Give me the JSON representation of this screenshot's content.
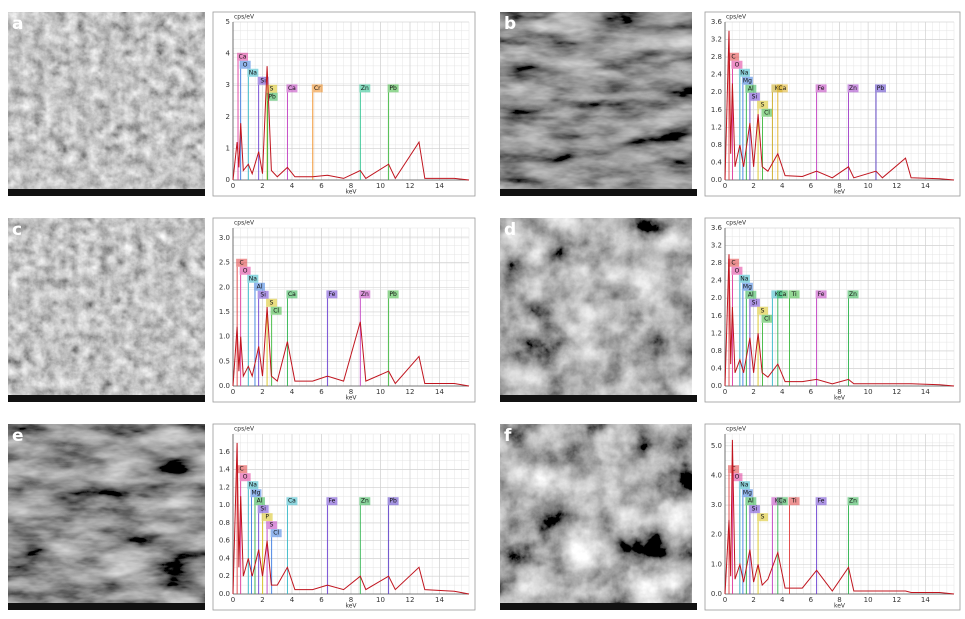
{
  "chart_data": [
    {
      "type": "line",
      "panel": "a",
      "ylabel": "cps/eV",
      "xlabel": "keV",
      "color": "#c0141e",
      "xlim": [
        0,
        16
      ],
      "xticks": [
        0,
        2,
        4,
        6,
        8,
        10,
        12,
        14
      ],
      "ylim": [
        0,
        5
      ],
      "yticks": [
        0,
        1,
        2,
        3,
        4,
        5
      ],
      "grid": true,
      "x": [
        0,
        0.28,
        0.4,
        0.52,
        0.7,
        1.04,
        1.3,
        1.74,
        2.0,
        2.31,
        2.6,
        3.0,
        3.69,
        4.2,
        5.4,
        6.4,
        7.5,
        8.63,
        9.0,
        10.55,
        11.0,
        12.61,
        13.0,
        15.0,
        16
      ],
      "values": [
        0,
        1.2,
        0.4,
        1.8,
        0.3,
        0.5,
        0.2,
        0.9,
        0.2,
        3.6,
        0.3,
        0.1,
        0.4,
        0.1,
        0.1,
        0.15,
        0.05,
        0.3,
        0.05,
        0.5,
        0.05,
        1.2,
        0.05,
        0.05,
        0
      ],
      "markers": [
        {
          "label": "Ca",
          "x": 0.34,
          "color": "#e0389a"
        },
        {
          "label": "O",
          "x": 0.52,
          "color": "#3a7be0"
        },
        {
          "label": "Na",
          "x": 1.04,
          "color": "#35b8c8"
        },
        {
          "label": "Si",
          "x": 1.74,
          "color": "#6b3fd1"
        },
        {
          "label": "S",
          "x": 2.31,
          "color": "#d8c21a"
        },
        {
          "label": "Pb",
          "x": 2.35,
          "color": "#2bb24c"
        },
        {
          "label": "Ca",
          "x": 3.69,
          "color": "#c03cc0"
        },
        {
          "label": "Cr",
          "x": 5.41,
          "color": "#f08a1c"
        },
        {
          "label": "Zn",
          "x": 8.63,
          "color": "#22c08a"
        },
        {
          "label": "Pb",
          "x": 10.55,
          "color": "#3cb83c"
        }
      ]
    },
    {
      "type": "line",
      "panel": "b",
      "ylabel": "cps/eV",
      "xlabel": "keV",
      "color": "#c0141e",
      "xlim": [
        0,
        16
      ],
      "xticks": [
        0,
        2,
        4,
        6,
        8,
        10,
        12,
        14
      ],
      "ylim": [
        0,
        3.6
      ],
      "yticks": [
        {
          "value": 0,
          "label": "0.0"
        },
        0.4,
        0.8,
        1.2,
        1.6,
        {
          "value": 2,
          "label": "2.0"
        },
        2.4,
        2.8,
        3.2,
        3.6
      ],
      "grid": true,
      "x": [
        0,
        0.28,
        0.4,
        0.52,
        0.7,
        1.04,
        1.3,
        1.74,
        2.0,
        2.31,
        2.6,
        3.0,
        3.69,
        4.2,
        5.4,
        6.4,
        7.5,
        8.63,
        9.0,
        10.55,
        11.0,
        12.61,
        13.0,
        15.0,
        16
      ],
      "values": [
        0,
        3.4,
        0.6,
        2.2,
        0.3,
        0.8,
        0.3,
        1.3,
        0.3,
        1.5,
        0.3,
        0.2,
        0.6,
        0.1,
        0.08,
        0.2,
        0.05,
        0.3,
        0.05,
        0.2,
        0.05,
        0.5,
        0.05,
        0.03,
        0
      ],
      "markers": [
        {
          "label": "C",
          "x": 0.28,
          "color": "#e03c3c"
        },
        {
          "label": "O",
          "x": 0.52,
          "color": "#e0389a"
        },
        {
          "label": "Na",
          "x": 1.04,
          "color": "#35b8c8"
        },
        {
          "label": "Mg",
          "x": 1.25,
          "color": "#3a7be0"
        },
        {
          "label": "Al",
          "x": 1.49,
          "color": "#2bb24c"
        },
        {
          "label": "Si",
          "x": 1.74,
          "color": "#6b3fd1"
        },
        {
          "label": "S",
          "x": 2.31,
          "color": "#d8c21a"
        },
        {
          "label": "Cl",
          "x": 2.62,
          "color": "#3cb83c"
        },
        {
          "label": "K",
          "x": 3.31,
          "color": "#c8a81a"
        },
        {
          "label": "Ca",
          "x": 3.69,
          "color": "#e0b020"
        },
        {
          "label": "Fe",
          "x": 6.4,
          "color": "#c03cc0"
        },
        {
          "label": "Zn",
          "x": 8.63,
          "color": "#a03cc8"
        },
        {
          "label": "Pb",
          "x": 10.55,
          "color": "#5a3cc8"
        }
      ]
    },
    {
      "type": "line",
      "panel": "c",
      "ylabel": "cps/eV",
      "xlabel": "keV",
      "color": "#c0141e",
      "xlim": [
        0,
        16
      ],
      "xticks": [
        0,
        2,
        4,
        6,
        8,
        10,
        12,
        14
      ],
      "ylim": [
        0,
        3.2
      ],
      "yticks": [
        {
          "value": 0,
          "label": "0.0"
        },
        0.5,
        {
          "value": 1,
          "label": "1.0"
        },
        1.5,
        {
          "value": 2,
          "label": "2.0"
        },
        2.5,
        {
          "value": 3,
          "label": "3.0"
        }
      ],
      "grid": true,
      "x": [
        0,
        0.28,
        0.4,
        0.52,
        0.7,
        1.04,
        1.3,
        1.74,
        2.0,
        2.31,
        2.6,
        3.0,
        3.69,
        4.2,
        5.4,
        6.4,
        7.5,
        8.63,
        9.0,
        10.55,
        11.0,
        12.61,
        13.0,
        15.0,
        16
      ],
      "values": [
        0,
        1.2,
        0.3,
        1.0,
        0.2,
        0.4,
        0.2,
        0.8,
        0.2,
        1.6,
        0.2,
        0.1,
        0.9,
        0.1,
        0.1,
        0.2,
        0.1,
        1.3,
        0.1,
        0.3,
        0.05,
        0.6,
        0.05,
        0.05,
        0
      ],
      "markers": [
        {
          "label": "C",
          "x": 0.28,
          "color": "#e03c3c"
        },
        {
          "label": "O",
          "x": 0.52,
          "color": "#e0389a"
        },
        {
          "label": "Na",
          "x": 1.04,
          "color": "#35b8c8"
        },
        {
          "label": "Al",
          "x": 1.49,
          "color": "#3a7be0"
        },
        {
          "label": "Si",
          "x": 1.74,
          "color": "#6b3fd1"
        },
        {
          "label": "S",
          "x": 2.31,
          "color": "#d8c21a"
        },
        {
          "label": "Cl",
          "x": 2.62,
          "color": "#3cb83c"
        },
        {
          "label": "Ca",
          "x": 3.69,
          "color": "#2bb24c"
        },
        {
          "label": "Fe",
          "x": 6.4,
          "color": "#6b3fd1"
        },
        {
          "label": "Zn",
          "x": 8.63,
          "color": "#c03cc0"
        },
        {
          "label": "Pb",
          "x": 10.55,
          "color": "#3cb83c"
        }
      ]
    },
    {
      "type": "line",
      "panel": "d",
      "ylabel": "cps/eV",
      "xlabel": "keV",
      "color": "#c0141e",
      "xlim": [
        0,
        16
      ],
      "xticks": [
        0,
        2,
        4,
        6,
        8,
        10,
        12,
        14
      ],
      "ylim": [
        0,
        3.6
      ],
      "yticks": [
        {
          "value": 0,
          "label": "0.0"
        },
        0.4,
        0.8,
        1.2,
        1.6,
        {
          "value": 2,
          "label": "2.0"
        },
        2.4,
        2.8,
        3.2,
        3.6
      ],
      "grid": true,
      "x": [
        0,
        0.28,
        0.4,
        0.52,
        0.7,
        1.04,
        1.3,
        1.74,
        2.0,
        2.31,
        2.6,
        3.0,
        3.69,
        4.2,
        5.4,
        6.4,
        7.5,
        8.63,
        9.0,
        10.55,
        11.0,
        12.61,
        13.0,
        15.0,
        16
      ],
      "values": [
        0,
        3.0,
        0.5,
        1.8,
        0.3,
        0.6,
        0.3,
        1.1,
        0.3,
        1.2,
        0.3,
        0.2,
        0.5,
        0.1,
        0.1,
        0.15,
        0.05,
        0.15,
        0.05,
        0.05,
        0.05,
        0.05,
        0.05,
        0.03,
        0
      ],
      "markers": [
        {
          "label": "C",
          "x": 0.28,
          "color": "#e03c3c"
        },
        {
          "label": "O",
          "x": 0.52,
          "color": "#e0389a"
        },
        {
          "label": "Na",
          "x": 1.04,
          "color": "#35b8c8"
        },
        {
          "label": "Mg",
          "x": 1.25,
          "color": "#3a7be0"
        },
        {
          "label": "Al",
          "x": 1.49,
          "color": "#2bb24c"
        },
        {
          "label": "Si",
          "x": 1.74,
          "color": "#6b3fd1"
        },
        {
          "label": "S",
          "x": 2.31,
          "color": "#d8c21a"
        },
        {
          "label": "Cl",
          "x": 2.62,
          "color": "#3cb83c"
        },
        {
          "label": "K",
          "x": 3.31,
          "color": "#35b8c8"
        },
        {
          "label": "Ca",
          "x": 3.69,
          "color": "#2bb24c"
        },
        {
          "label": "Ti",
          "x": 4.51,
          "color": "#3cb83c"
        },
        {
          "label": "Fe",
          "x": 6.4,
          "color": "#c03cc0"
        },
        {
          "label": "Zn",
          "x": 8.63,
          "color": "#2bb24c"
        }
      ]
    },
    {
      "type": "line",
      "panel": "e",
      "ylabel": "cps/eV",
      "xlabel": "keV",
      "color": "#c0141e",
      "xlim": [
        0,
        16
      ],
      "xticks": [
        0,
        2,
        4,
        6,
        8,
        10,
        12,
        14
      ],
      "ylim": [
        0,
        1.8
      ],
      "yticks": [
        {
          "value": 0,
          "label": "0.0"
        },
        0.2,
        0.4,
        0.6,
        0.8,
        {
          "value": 1,
          "label": "1.0"
        },
        1.2,
        1.4,
        1.6
      ],
      "grid": true,
      "x": [
        0,
        0.28,
        0.4,
        0.52,
        0.7,
        1.04,
        1.3,
        1.74,
        2.0,
        2.31,
        2.6,
        3.0,
        3.69,
        4.2,
        5.4,
        6.4,
        7.5,
        8.63,
        9.0,
        10.55,
        11.0,
        12.61,
        13.0,
        15.0,
        16
      ],
      "values": [
        0,
        1.7,
        0.3,
        1.1,
        0.2,
        0.4,
        0.2,
        0.5,
        0.2,
        0.6,
        0.1,
        0.1,
        0.3,
        0.05,
        0.05,
        0.1,
        0.05,
        0.2,
        0.05,
        0.2,
        0.05,
        0.3,
        0.05,
        0.03,
        0
      ],
      "markers": [
        {
          "label": "C",
          "x": 0.28,
          "color": "#e03c3c"
        },
        {
          "label": "O",
          "x": 0.52,
          "color": "#e0389a"
        },
        {
          "label": "Na",
          "x": 1.04,
          "color": "#35b8c8"
        },
        {
          "label": "Mg",
          "x": 1.25,
          "color": "#3a7be0"
        },
        {
          "label": "Al",
          "x": 1.49,
          "color": "#2bb24c"
        },
        {
          "label": "Si",
          "x": 1.74,
          "color": "#6b3fd1"
        },
        {
          "label": "P",
          "x": 2.01,
          "color": "#d8c21a"
        },
        {
          "label": "S",
          "x": 2.31,
          "color": "#c03cc0"
        },
        {
          "label": "Cl",
          "x": 2.62,
          "color": "#3a7be0"
        },
        {
          "label": "Ca",
          "x": 3.69,
          "color": "#35b8c8"
        },
        {
          "label": "Fe",
          "x": 6.4,
          "color": "#6b3fd1"
        },
        {
          "label": "Zn",
          "x": 8.63,
          "color": "#2bb24c"
        },
        {
          "label": "Pb",
          "x": 10.55,
          "color": "#5a3cc8"
        }
      ]
    },
    {
      "type": "line",
      "panel": "f",
      "ylabel": "cps/eV",
      "xlabel": "keV",
      "color": "#c0141e",
      "xlim": [
        0,
        16
      ],
      "xticks": [
        0,
        2,
        4,
        6,
        8,
        10,
        12,
        14
      ],
      "ylim": [
        0,
        5.4
      ],
      "yticks": [
        {
          "value": 0,
          "label": "0.0"
        },
        {
          "value": 1,
          "label": "1.0"
        },
        {
          "value": 2,
          "label": "2.0"
        },
        {
          "value": 3,
          "label": "3.0"
        },
        {
          "value": 4,
          "label": "4.0"
        },
        {
          "value": 5,
          "label": "5.0"
        }
      ],
      "grid": true,
      "x": [
        0,
        0.28,
        0.4,
        0.52,
        0.7,
        1.04,
        1.3,
        1.74,
        2.0,
        2.31,
        2.6,
        3.0,
        3.69,
        4.2,
        5.4,
        6.4,
        7.5,
        8.63,
        9.0,
        10.55,
        11.0,
        12.61,
        13.0,
        15.0,
        16
      ],
      "values": [
        0,
        2.5,
        0.6,
        5.2,
        0.5,
        1.0,
        0.4,
        1.5,
        0.4,
        1.0,
        0.3,
        0.5,
        1.4,
        0.2,
        0.2,
        0.8,
        0.1,
        0.9,
        0.1,
        0.1,
        0.1,
        0.1,
        0.05,
        0.05,
        0
      ],
      "markers": [
        {
          "label": "C",
          "x": 0.28,
          "color": "#e03c3c"
        },
        {
          "label": "O",
          "x": 0.52,
          "color": "#e0389a"
        },
        {
          "label": "Na",
          "x": 1.04,
          "color": "#35b8c8"
        },
        {
          "label": "Mg",
          "x": 1.25,
          "color": "#3a7be0"
        },
        {
          "label": "Al",
          "x": 1.49,
          "color": "#2bb24c"
        },
        {
          "label": "Si",
          "x": 1.74,
          "color": "#6b3fd1"
        },
        {
          "label": "S",
          "x": 2.31,
          "color": "#d8c21a"
        },
        {
          "label": "K",
          "x": 3.31,
          "color": "#c03cc0"
        },
        {
          "label": "Ca",
          "x": 3.69,
          "color": "#2bb24c"
        },
        {
          "label": "Ti",
          "x": 4.51,
          "color": "#e03c3c"
        },
        {
          "label": "Fe",
          "x": 6.4,
          "color": "#6b3fd1"
        },
        {
          "label": "Zn",
          "x": 8.63,
          "color": "#2bb24c"
        }
      ]
    }
  ]
}
